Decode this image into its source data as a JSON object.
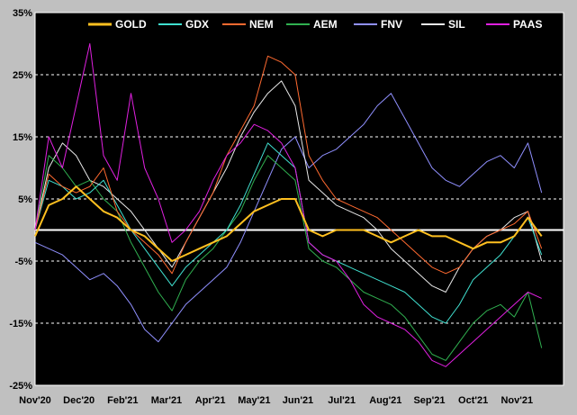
{
  "chart_data": {
    "type": "line",
    "ylim": [
      -25,
      35
    ],
    "y_ticks": [
      35,
      25,
      15,
      5,
      -5,
      -15,
      -25
    ],
    "y_tick_labels": [
      "35%",
      "25%",
      "15%",
      "5%",
      "-5%",
      "-15%",
      "-25%"
    ],
    "x_tick_labels": [
      "Nov'20",
      "Dec'20",
      "Feb'21",
      "Mar'21",
      "Apr'21",
      "May'21",
      "Jun'21",
      "Jul'21",
      "Aug'21",
      "Sep'21",
      "Oct'21",
      "Nov'21"
    ],
    "x_tick_positions": [
      0,
      1.6,
      3.2,
      4.8,
      6.4,
      8.0,
      9.6,
      11.2,
      12.8,
      14.4,
      16.0,
      17.6
    ],
    "x_range": [
      0,
      19.3
    ],
    "grid": true,
    "zero_line": true,
    "legend_position": "top",
    "background": "#000000",
    "series": [
      {
        "name": "GOLD",
        "color": "#ffc020",
        "width": 2,
        "x": [
          0,
          0.5,
          1,
          1.5,
          2,
          2.5,
          3,
          3.5,
          4,
          4.5,
          5,
          5.5,
          6,
          6.5,
          7,
          7.5,
          8,
          8.5,
          9,
          9.5,
          10,
          10.5,
          11,
          11.5,
          12,
          12.5,
          13,
          13.5,
          14,
          14.5,
          15,
          15.5,
          16,
          16.5,
          17,
          17.5,
          18,
          18.5
        ],
        "y": [
          -1,
          4,
          5,
          7,
          5,
          3,
          2,
          0,
          -1,
          -3,
          -5,
          -4,
          -3,
          -2,
          -1,
          1,
          3,
          4,
          5,
          5,
          0,
          -1,
          0,
          0,
          0,
          -1,
          -2,
          -1,
          0,
          -1,
          -1,
          -2,
          -3,
          -2,
          -2,
          -1,
          2,
          -1
        ]
      },
      {
        "name": "GDX",
        "color": "#40e0d0",
        "width": 1,
        "x": [
          0,
          0.5,
          1,
          1.5,
          2,
          2.5,
          3,
          3.5,
          4,
          4.5,
          5,
          5.5,
          6,
          6.5,
          7,
          7.5,
          8,
          8.5,
          9,
          9.5,
          10,
          10.5,
          11,
          11.5,
          12,
          12.5,
          13,
          13.5,
          14,
          14.5,
          15,
          15.5,
          16,
          16.5,
          17,
          17.5,
          18,
          18.5
        ],
        "y": [
          0,
          8,
          7,
          5,
          6,
          8,
          4,
          0,
          -3,
          -6,
          -9,
          -6,
          -4,
          -2,
          0,
          4,
          9,
          14,
          12,
          10,
          -2,
          -4,
          -5,
          -6,
          -7,
          -8,
          -9,
          -10,
          -12,
          -14,
          -15,
          -12,
          -8,
          -6,
          -4,
          -1,
          2,
          -4
        ]
      },
      {
        "name": "NEM",
        "color": "#ff6a30",
        "width": 1,
        "x": [
          0,
          0.5,
          1,
          1.5,
          2,
          2.5,
          3,
          3.5,
          4,
          4.5,
          5,
          5.5,
          6,
          6.5,
          7,
          7.5,
          8,
          8.5,
          9,
          9.5,
          10,
          10.5,
          11,
          11.5,
          12,
          12.5,
          13,
          13.5,
          14,
          14.5,
          15,
          15.5,
          16,
          16.5,
          17,
          17.5,
          18,
          18.5
        ],
        "y": [
          0,
          9,
          7,
          6,
          7,
          10,
          3,
          0,
          -2,
          -4,
          -7,
          -2,
          2,
          6,
          12,
          16,
          20,
          28,
          27,
          25,
          12,
          8,
          5,
          4,
          3,
          2,
          0,
          -2,
          -4,
          -6,
          -7,
          -6,
          -3,
          -1,
          0,
          1,
          3,
          -3
        ]
      },
      {
        "name": "AEM",
        "color": "#30b050",
        "width": 1,
        "x": [
          0,
          0.5,
          1,
          1.5,
          2,
          2.5,
          3,
          3.5,
          4,
          4.5,
          5,
          5.5,
          6,
          6.5,
          7,
          7.5,
          8,
          8.5,
          9,
          9.5,
          10,
          10.5,
          11,
          11.5,
          12,
          12.5,
          13,
          13.5,
          14,
          14.5,
          15,
          15.5,
          16,
          16.5,
          17,
          17.5,
          18,
          18.5
        ],
        "y": [
          0,
          12,
          10,
          7,
          8,
          5,
          3,
          -2,
          -6,
          -10,
          -13,
          -8,
          -5,
          -3,
          0,
          3,
          8,
          12,
          10,
          8,
          -3,
          -5,
          -6,
          -8,
          -10,
          -11,
          -12,
          -14,
          -17,
          -20,
          -21,
          -18,
          -15,
          -13,
          -12,
          -14,
          -10,
          -19
        ]
      },
      {
        "name": "FNV",
        "color": "#9090ff",
        "width": 1,
        "x": [
          0,
          0.5,
          1,
          1.5,
          2,
          2.5,
          3,
          3.5,
          4,
          4.5,
          5,
          5.5,
          6,
          6.5,
          7,
          7.5,
          8,
          8.5,
          9,
          9.5,
          10,
          10.5,
          11,
          11.5,
          12,
          12.5,
          13,
          13.5,
          14,
          14.5,
          15,
          15.5,
          16,
          16.5,
          17,
          17.5,
          18,
          18.5
        ],
        "y": [
          -2,
          -3,
          -4,
          -6,
          -8,
          -7,
          -9,
          -12,
          -16,
          -18,
          -15,
          -12,
          -10,
          -8,
          -6,
          -2,
          3,
          8,
          13,
          15,
          10,
          12,
          13,
          15,
          17,
          20,
          22,
          18,
          14,
          10,
          8,
          7,
          9,
          11,
          12,
          10,
          14,
          6
        ]
      },
      {
        "name": "SIL",
        "color": "#e8e8e8",
        "width": 1,
        "x": [
          0,
          0.5,
          1,
          1.5,
          2,
          2.5,
          3,
          3.5,
          4,
          4.5,
          5,
          5.5,
          6,
          6.5,
          7,
          7.5,
          8,
          8.5,
          9,
          9.5,
          10,
          10.5,
          11,
          11.5,
          12,
          12.5,
          13,
          13.5,
          14,
          14.5,
          15,
          15.5,
          16,
          16.5,
          17,
          17.5,
          18,
          18.5
        ],
        "y": [
          0,
          10,
          14,
          12,
          8,
          7,
          5,
          3,
          0,
          -3,
          -6,
          -2,
          2,
          6,
          10,
          15,
          19,
          22,
          24,
          20,
          8,
          6,
          4,
          3,
          2,
          0,
          -3,
          -5,
          -7,
          -9,
          -10,
          -6,
          -3,
          -1,
          0,
          2,
          3,
          -5
        ]
      },
      {
        "name": "PAAS",
        "color": "#e020e0",
        "width": 1,
        "x": [
          0,
          0.5,
          1,
          1.5,
          2,
          2.5,
          3,
          3.5,
          4,
          4.5,
          5,
          5.5,
          6,
          6.5,
          7,
          7.5,
          8,
          8.5,
          9,
          9.5,
          10,
          10.5,
          11,
          11.5,
          12,
          12.5,
          13,
          13.5,
          14,
          14.5,
          15,
          15.5,
          16,
          16.5,
          17,
          17.5,
          18,
          18.5
        ],
        "y": [
          0,
          15,
          10,
          20,
          30,
          12,
          8,
          22,
          10,
          5,
          -2,
          0,
          3,
          8,
          12,
          14,
          17,
          16,
          14,
          10,
          -2,
          -4,
          -5,
          -8,
          -12,
          -14,
          -15,
          -16,
          -18,
          -21,
          -22,
          -20,
          -18,
          -16,
          -14,
          -12,
          -10,
          -11
        ]
      }
    ]
  }
}
